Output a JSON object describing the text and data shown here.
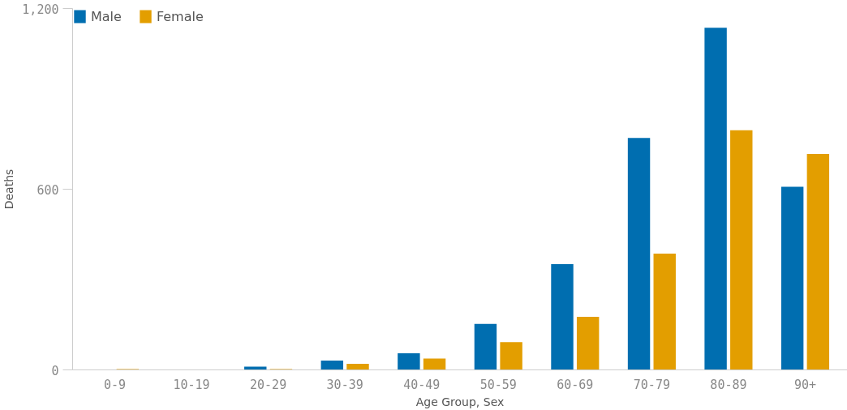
{
  "chart_data": {
    "type": "bar",
    "xlabel": "Age Group, Sex",
    "ylabel": "Deaths",
    "categories": [
      "0-9",
      "10-19",
      "20-29",
      "30-39",
      "40-49",
      "50-59",
      "60-69",
      "70-79",
      "80-89",
      "90+"
    ],
    "series": [
      {
        "name": "Male",
        "color": "#006eb0",
        "values": [
          null,
          null,
          11,
          31,
          55,
          153,
          351,
          770,
          1136,
          608
        ]
      },
      {
        "name": "Female",
        "color": "#e39e00",
        "values": [
          3,
          null,
          3,
          20,
          38,
          92,
          176,
          386,
          796,
          717
        ]
      }
    ],
    "ylim": [
      0,
      1200
    ],
    "yticks": [
      0,
      {
        "value": 600,
        "label": "600"
      },
      {
        "value": 1200,
        "label": "1,200"
      }
    ],
    "grid": false,
    "legend": "top left"
  }
}
